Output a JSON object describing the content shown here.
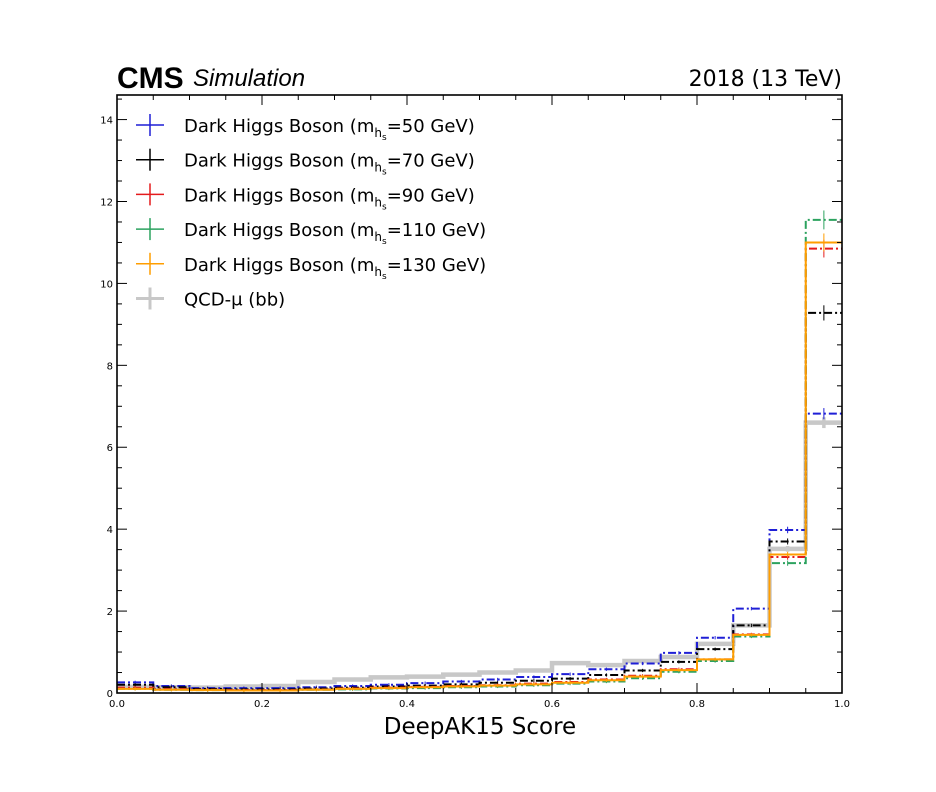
{
  "header": {
    "experiment": "CMS",
    "status": "Simulation",
    "lumi": "2018 (13 TeV)"
  },
  "chart_data": {
    "type": "line",
    "style": "step histogram",
    "xlabel": "DeepAK15 Score",
    "ylabel": "",
    "xlim": [
      0.0,
      1.0
    ],
    "ylim": [
      0,
      14.6
    ],
    "x_ticks": [
      "0.0",
      "0.2",
      "0.4",
      "0.6",
      "0.8",
      "1.0"
    ],
    "y_ticks": [
      "0",
      "2",
      "4",
      "6",
      "8",
      "10",
      "12",
      "14"
    ],
    "legend_placement": "top-left",
    "bin_edges": [
      0.0,
      0.05,
      0.1,
      0.15,
      0.2,
      0.25,
      0.3,
      0.35,
      0.4,
      0.45,
      0.5,
      0.55,
      0.6,
      0.65,
      0.7,
      0.75,
      0.8,
      0.85,
      0.9,
      0.95,
      1.0
    ],
    "series": [
      {
        "name_main": "Dark Higgs Boson (m",
        "name_sub": "h",
        "name_subsub": "s",
        "name_tail": "=50 GeV)",
        "color": "#1f1fd6",
        "dashed": true,
        "width": 2,
        "values": [
          0.26,
          0.17,
          0.12,
          0.12,
          0.12,
          0.14,
          0.17,
          0.2,
          0.24,
          0.28,
          0.33,
          0.39,
          0.46,
          0.58,
          0.72,
          0.98,
          1.35,
          2.06,
          3.98,
          6.82
        ]
      },
      {
        "name_main": "Dark Higgs Boson (m",
        "name_sub": "h",
        "name_subsub": "s",
        "name_tail": "=70 GeV)",
        "color": "#000000",
        "dashed": true,
        "width": 2,
        "values": [
          0.2,
          0.14,
          0.1,
          0.09,
          0.09,
          0.11,
          0.13,
          0.16,
          0.18,
          0.21,
          0.25,
          0.3,
          0.35,
          0.44,
          0.55,
          0.76,
          1.07,
          1.65,
          3.7,
          9.28
        ]
      },
      {
        "name_main": "Dark Higgs Boson (m",
        "name_sub": "h",
        "name_subsub": "s",
        "name_tail": "=90 GeV)",
        "color": "#e41a1c",
        "dashed": true,
        "width": 2,
        "values": [
          0.13,
          0.1,
          0.08,
          0.07,
          0.07,
          0.09,
          0.11,
          0.13,
          0.15,
          0.17,
          0.19,
          0.23,
          0.27,
          0.33,
          0.42,
          0.58,
          0.82,
          1.43,
          3.32,
          10.85
        ]
      },
      {
        "name_main": "Dark Higgs Boson (m",
        "name_sub": "h",
        "name_subsub": "s",
        "name_tail": "=110 GeV)",
        "color": "#2ca25f",
        "dashed": true,
        "width": 2,
        "values": [
          0.1,
          0.08,
          0.07,
          0.06,
          0.06,
          0.08,
          0.09,
          0.11,
          0.12,
          0.14,
          0.16,
          0.19,
          0.23,
          0.28,
          0.36,
          0.52,
          0.78,
          1.38,
          3.17,
          11.55
        ]
      },
      {
        "name_main": "Dark Higgs Boson (m",
        "name_sub": "h",
        "name_subsub": "s",
        "name_tail": "=130 GeV)",
        "color": "#ff9e00",
        "dashed": false,
        "width": 2,
        "values": [
          0.1,
          0.08,
          0.07,
          0.06,
          0.06,
          0.08,
          0.1,
          0.12,
          0.14,
          0.16,
          0.18,
          0.21,
          0.25,
          0.31,
          0.4,
          0.56,
          0.82,
          1.42,
          3.38,
          11.0
        ]
      },
      {
        "name_main": "QCD-μ (bb)",
        "name_sub": "",
        "name_subsub": "",
        "name_tail": "",
        "color": "#c8c8c8",
        "dashed": false,
        "width": 4.5,
        "values": [
          0.15,
          0.14,
          0.13,
          0.16,
          0.17,
          0.27,
          0.33,
          0.38,
          0.4,
          0.45,
          0.5,
          0.55,
          0.73,
          0.68,
          0.78,
          0.88,
          1.2,
          1.65,
          3.52,
          6.6
        ]
      }
    ]
  }
}
